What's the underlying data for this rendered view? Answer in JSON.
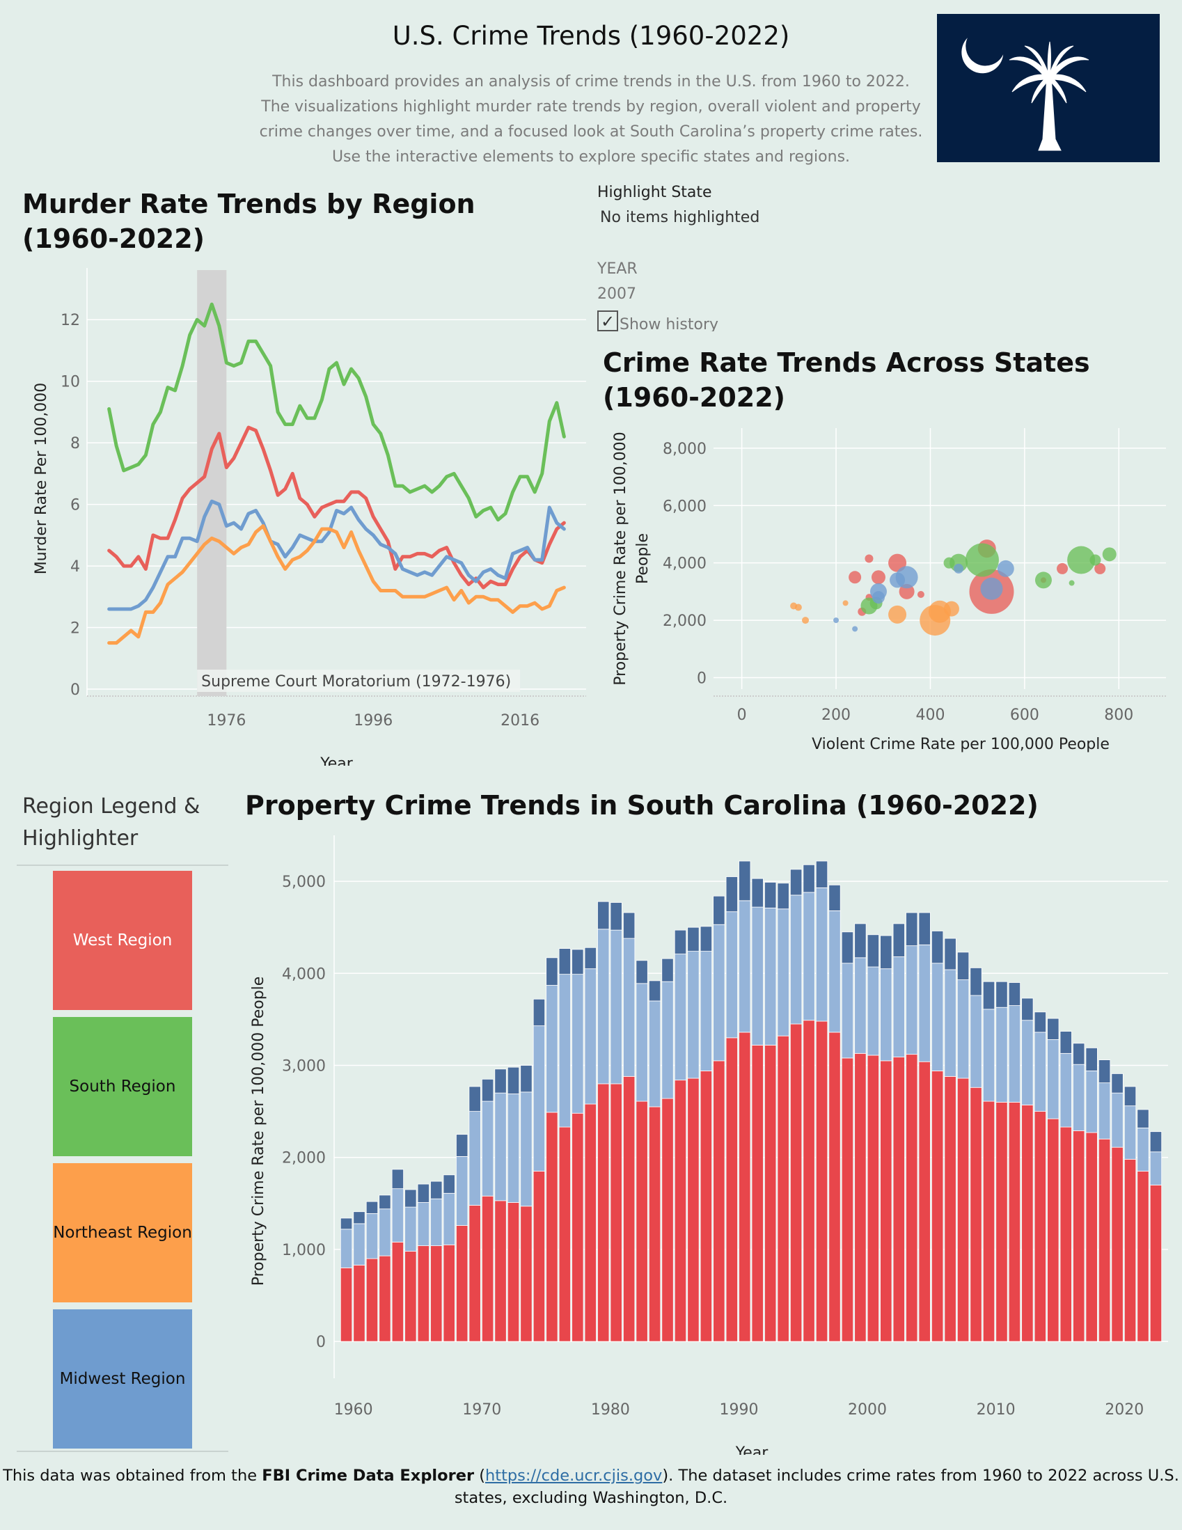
{
  "header": {
    "title": "U.S. Crime Trends (1960-2022)",
    "description": [
      "This dashboard provides an analysis of crime trends in the U.S. from 1960 to 2022.",
      "The visualizations highlight murder rate trends by region, overall violent and property",
      "crime changes over time, and a focused look at South Carolina’s property crime rates.",
      "Use the interactive elements to explore specific states and regions."
    ]
  },
  "colors": {
    "background": "#e3eeea",
    "West": "#e8605a",
    "South": "#6abf59",
    "Northeast": "#fd9f4b",
    "Midwest": "#6f9ccf",
    "flag_blue": "#041e42",
    "sc_red": "#e8464b",
    "sc_light_blue": "#95b4d9",
    "sc_dark_blue": "#4a6d9c"
  },
  "controls": {
    "highlight_label": "Highlight State",
    "highlight_value": "No items highlighted",
    "year_label": "YEAR",
    "year_value": "2007",
    "show_history_label": "Show history",
    "show_history_checked": true
  },
  "legend": {
    "title_line1": "Region Legend &",
    "title_line2": "Highlighter",
    "items": [
      {
        "label": "West Region",
        "color": "#e8605a",
        "text_color": "#ffffff"
      },
      {
        "label": "South Region",
        "color": "#6abf59",
        "text_color": "#111111"
      },
      {
        "label": "Northeast Region",
        "color": "#fd9f4b",
        "text_color": "#111111"
      },
      {
        "label": "Midwest Region",
        "color": "#6f9ccf",
        "text_color": "#111111"
      }
    ]
  },
  "footer": {
    "pre": "This data was obtained from the ",
    "bold": "FBI Crime Data Explorer",
    "open_paren": " (",
    "link": "https://cde.ucr.cjis.gov",
    "post": "). The dataset includes crime rates from 1960 to 2022 across U.S.",
    "line2": "states, excluding Washington, D.C."
  },
  "chart_data": [
    {
      "id": "murder",
      "type": "line",
      "title_line1": "Murder Rate Trends by Region",
      "title_line2": "(1960-2022)",
      "xlabel": "Year",
      "ylabel": "Murder Rate Per 100,000",
      "xlim": [
        1957,
        2025
      ],
      "ylim": [
        0,
        13
      ],
      "xticks": [
        1976,
        1996,
        2016
      ],
      "yticks": [
        0,
        2,
        4,
        6,
        8,
        10,
        12
      ],
      "band": {
        "from": 1972,
        "to": 1976,
        "label": "Supreme Court Moratorium (1972-1976)"
      },
      "x_start": 1960,
      "series": [
        {
          "region": "South",
          "color": "#6abf59",
          "values": [
            9.1,
            7.9,
            7.1,
            7.2,
            7.3,
            7.6,
            8.6,
            9.0,
            9.8,
            9.7,
            10.5,
            11.5,
            12.0,
            11.8,
            12.5,
            11.8,
            10.6,
            10.5,
            10.6,
            11.3,
            11.3,
            10.9,
            10.5,
            9.0,
            8.6,
            8.6,
            9.2,
            8.8,
            8.8,
            9.4,
            10.4,
            10.6,
            9.9,
            10.4,
            10.1,
            9.5,
            8.6,
            8.3,
            7.6,
            6.6,
            6.6,
            6.4,
            6.5,
            6.6,
            6.4,
            6.6,
            6.9,
            7.0,
            6.6,
            6.2,
            5.6,
            5.8,
            5.9,
            5.5,
            5.7,
            6.4,
            6.9,
            6.9,
            6.4,
            7.0,
            8.7,
            9.3,
            8.2
          ]
        },
        {
          "region": "West",
          "color": "#e8605a",
          "values": [
            4.5,
            4.3,
            4.0,
            4.0,
            4.3,
            3.9,
            5.0,
            4.9,
            4.9,
            5.5,
            6.2,
            6.5,
            6.7,
            6.9,
            7.8,
            8.3,
            7.2,
            7.5,
            8.0,
            8.5,
            8.4,
            7.8,
            7.1,
            6.3,
            6.5,
            7.0,
            6.2,
            6.0,
            5.6,
            5.9,
            6.0,
            6.1,
            6.1,
            6.4,
            6.4,
            6.2,
            5.6,
            5.2,
            4.8,
            3.9,
            4.3,
            4.3,
            4.4,
            4.4,
            4.3,
            4.5,
            4.6,
            4.1,
            3.7,
            3.4,
            3.6,
            3.3,
            3.5,
            3.4,
            3.4,
            3.9,
            4.3,
            4.5,
            4.2,
            4.1,
            4.7,
            5.2,
            5.4
          ]
        },
        {
          "region": "Midwest",
          "color": "#6f9ccf",
          "values": [
            2.6,
            2.6,
            2.6,
            2.6,
            2.7,
            2.9,
            3.3,
            3.8,
            4.3,
            4.3,
            4.9,
            4.9,
            4.8,
            5.6,
            6.1,
            6.0,
            5.3,
            5.4,
            5.2,
            5.7,
            5.8,
            5.4,
            4.8,
            4.7,
            4.3,
            4.6,
            5.0,
            4.9,
            4.8,
            4.8,
            5.1,
            5.8,
            5.7,
            5.9,
            5.5,
            5.2,
            5.0,
            4.7,
            4.6,
            4.4,
            3.9,
            3.8,
            3.7,
            3.8,
            3.7,
            4.0,
            4.3,
            4.2,
            4.1,
            3.7,
            3.5,
            3.8,
            3.9,
            3.7,
            3.6,
            4.4,
            4.5,
            4.6,
            4.2,
            4.2,
            5.9,
            5.4,
            5.2
          ]
        },
        {
          "region": "Northeast",
          "color": "#fd9f4b",
          "values": [
            1.5,
            1.5,
            1.7,
            1.9,
            1.7,
            2.5,
            2.5,
            2.8,
            3.4,
            3.6,
            3.8,
            4.1,
            4.4,
            4.7,
            4.9,
            4.8,
            4.6,
            4.4,
            4.6,
            4.7,
            5.1,
            5.3,
            4.8,
            4.3,
            3.9,
            4.2,
            4.3,
            4.5,
            4.8,
            5.2,
            5.2,
            5.1,
            4.6,
            5.1,
            4.5,
            4.0,
            3.5,
            3.2,
            3.2,
            3.2,
            3.0,
            3.0,
            3.0,
            3.0,
            3.1,
            3.2,
            3.3,
            2.9,
            3.2,
            2.8,
            3.0,
            3.0,
            2.9,
            2.9,
            2.7,
            2.5,
            2.7,
            2.7,
            2.8,
            2.6,
            2.7,
            3.2,
            3.3
          ]
        }
      ]
    },
    {
      "id": "states",
      "type": "scatter",
      "title_line1": "Crime Rate Trends Across States",
      "title_line2": "(1960-2022)",
      "xlabel": "Violent Crime Rate per 100,000 People",
      "ylabel_line1": "Property Crime Rate per 100,000",
      "ylabel_line2": "People",
      "xlim": [
        -60,
        900
      ],
      "ylim": [
        -400,
        8700
      ],
      "xticks": [
        0,
        200,
        400,
        600,
        800
      ],
      "yticks": [
        0,
        2000,
        4000,
        6000,
        8000
      ],
      "points": [
        {
          "x": 530,
          "y": 3000,
          "r": 32,
          "region": "West"
        },
        {
          "x": 520,
          "y": 4500,
          "r": 13,
          "region": "West"
        },
        {
          "x": 330,
          "y": 4000,
          "r": 13,
          "region": "West"
        },
        {
          "x": 350,
          "y": 3000,
          "r": 11,
          "region": "West"
        },
        {
          "x": 290,
          "y": 3500,
          "r": 10,
          "region": "West"
        },
        {
          "x": 240,
          "y": 3500,
          "r": 9,
          "region": "West"
        },
        {
          "x": 270,
          "y": 4150,
          "r": 6,
          "region": "West"
        },
        {
          "x": 680,
          "y": 3800,
          "r": 8,
          "region": "West"
        },
        {
          "x": 760,
          "y": 3800,
          "r": 8,
          "region": "West"
        },
        {
          "x": 640,
          "y": 3400,
          "r": 4,
          "region": "West"
        },
        {
          "x": 380,
          "y": 2900,
          "r": 5,
          "region": "West"
        },
        {
          "x": 270,
          "y": 2800,
          "r": 5,
          "region": "West"
        },
        {
          "x": 255,
          "y": 2300,
          "r": 6,
          "region": "West"
        },
        {
          "x": 510,
          "y": 4100,
          "r": 24,
          "region": "South"
        },
        {
          "x": 720,
          "y": 4100,
          "r": 20,
          "region": "South"
        },
        {
          "x": 460,
          "y": 4000,
          "r": 13,
          "region": "South"
        },
        {
          "x": 640,
          "y": 3400,
          "r": 12,
          "region": "South"
        },
        {
          "x": 780,
          "y": 4300,
          "r": 10,
          "region": "South"
        },
        {
          "x": 440,
          "y": 4000,
          "r": 8,
          "region": "South"
        },
        {
          "x": 270,
          "y": 2500,
          "r": 12,
          "region": "South"
        },
        {
          "x": 285,
          "y": 2600,
          "r": 9,
          "region": "South"
        },
        {
          "x": 750,
          "y": 4100,
          "r": 8,
          "region": "South"
        },
        {
          "x": 700,
          "y": 3300,
          "r": 4,
          "region": "South"
        },
        {
          "x": 410,
          "y": 2000,
          "r": 22,
          "region": "Northeast"
        },
        {
          "x": 420,
          "y": 2300,
          "r": 16,
          "region": "Northeast"
        },
        {
          "x": 330,
          "y": 2200,
          "r": 13,
          "region": "Northeast"
        },
        {
          "x": 445,
          "y": 2400,
          "r": 11,
          "region": "Northeast"
        },
        {
          "x": 120,
          "y": 2450,
          "r": 5,
          "region": "Northeast"
        },
        {
          "x": 135,
          "y": 2000,
          "r": 5,
          "region": "Northeast"
        },
        {
          "x": 110,
          "y": 2500,
          "r": 5,
          "region": "Northeast"
        },
        {
          "x": 220,
          "y": 2600,
          "r": 4,
          "region": "Northeast"
        },
        {
          "x": 350,
          "y": 3500,
          "r": 16,
          "region": "Midwest"
        },
        {
          "x": 530,
          "y": 3100,
          "r": 16,
          "region": "Midwest"
        },
        {
          "x": 290,
          "y": 3000,
          "r": 12,
          "region": "Midwest"
        },
        {
          "x": 560,
          "y": 3800,
          "r": 12,
          "region": "Midwest"
        },
        {
          "x": 330,
          "y": 3400,
          "r": 11,
          "region": "Midwest"
        },
        {
          "x": 290,
          "y": 2800,
          "r": 9,
          "region": "Midwest"
        },
        {
          "x": 460,
          "y": 3800,
          "r": 7,
          "region": "Midwest"
        },
        {
          "x": 200,
          "y": 2000,
          "r": 4,
          "region": "Midwest"
        },
        {
          "x": 240,
          "y": 1700,
          "r": 4,
          "region": "Midwest"
        }
      ]
    },
    {
      "id": "sc",
      "type": "bar",
      "stacked": true,
      "title": "Property Crime Trends in South Carolina (1960-2022)",
      "xlabel": "Year",
      "ylabel": "Property Crime Rate per 100,000 People",
      "xlim": [
        1958.5,
        2023.4
      ],
      "ylim": [
        -400,
        5500
      ],
      "xticks": [
        1960,
        1970,
        1980,
        1990,
        2000,
        2010,
        2020
      ],
      "yticks": [
        0,
        1000,
        2000,
        3000,
        4000,
        5000
      ],
      "x_start": 1959,
      "series": [
        {
          "name": "red",
          "color": "#e8464b",
          "values": [
            800,
            830,
            900,
            930,
            1080,
            980,
            1040,
            1040,
            1050,
            1260,
            1480,
            1580,
            1530,
            1510,
            1470,
            1850,
            2490,
            2330,
            2480,
            2580,
            2800,
            2800,
            2880,
            2610,
            2550,
            2640,
            2840,
            2860,
            2940,
            3050,
            3300,
            3360,
            3220,
            3220,
            3320,
            3450,
            3490,
            3480,
            3360,
            3080,
            3130,
            3110,
            3050,
            3090,
            3120,
            3040,
            2940,
            2880,
            2860,
            2760,
            2610,
            2600,
            2600,
            2570,
            2500,
            2420,
            2330,
            2290,
            2270,
            2200,
            2110,
            1980,
            1850,
            1700
          ]
        },
        {
          "name": "light blue",
          "color": "#95b4d9",
          "values": [
            420,
            450,
            490,
            510,
            580,
            480,
            470,
            510,
            560,
            750,
            1020,
            1030,
            1170,
            1180,
            1240,
            1580,
            1380,
            1660,
            1510,
            1470,
            1680,
            1670,
            1500,
            1280,
            1150,
            1270,
            1370,
            1380,
            1300,
            1480,
            1370,
            1430,
            1500,
            1490,
            1380,
            1400,
            1390,
            1450,
            1320,
            1030,
            1040,
            960,
            1000,
            1090,
            1180,
            1270,
            1170,
            1160,
            1070,
            1000,
            1000,
            1030,
            1050,
            920,
            860,
            860,
            800,
            720,
            670,
            610,
            590,
            580,
            470,
            360
          ]
        },
        {
          "name": "dark blue",
          "color": "#4a6d9c",
          "values": [
            120,
            130,
            130,
            150,
            210,
            190,
            200,
            190,
            200,
            240,
            270,
            240,
            260,
            290,
            290,
            290,
            300,
            280,
            270,
            230,
            300,
            300,
            280,
            250,
            220,
            250,
            260,
            260,
            270,
            310,
            380,
            430,
            310,
            280,
            280,
            280,
            300,
            290,
            280,
            340,
            370,
            350,
            360,
            360,
            360,
            350,
            350,
            340,
            300,
            300,
            300,
            280,
            250,
            240,
            220,
            230,
            240,
            230,
            250,
            250,
            210,
            210,
            200,
            220
          ]
        }
      ]
    }
  ]
}
